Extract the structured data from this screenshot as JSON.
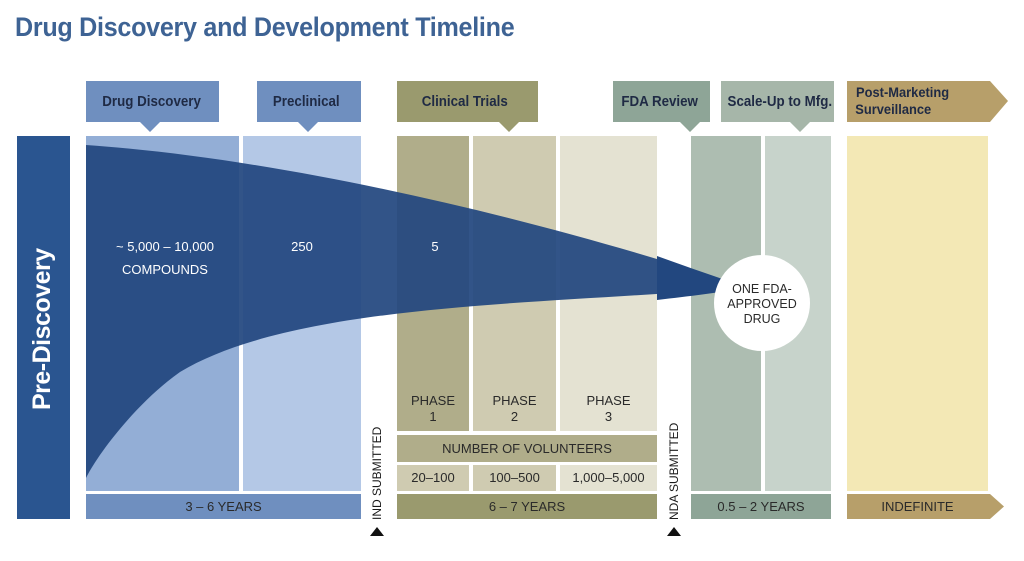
{
  "title": "Drug Discovery and Development Timeline",
  "stages": {
    "pre_discovery": "Pre-Discovery",
    "drug_discovery": "Drug Discovery",
    "preclinical": "Preclinical",
    "clinical_trials": "Clinical Trials",
    "fda_review": "FDA Review",
    "scale_up": "Scale-Up to Mfg.",
    "post_marketing_line1": "Post-Marketing",
    "post_marketing_line2": "Surveillance"
  },
  "counts": {
    "discovery_line1": "~ 5,000 – 10,000",
    "discovery_line2": "COMPOUNDS",
    "preclinical": "250",
    "clinical": "5",
    "approved_line1": "ONE FDA-",
    "approved_line2": "APPROVED",
    "approved_line3": "DRUG"
  },
  "phases": [
    {
      "word": "PHASE",
      "number": "1",
      "volunteers": "20–100"
    },
    {
      "word": "PHASE",
      "number": "2",
      "volunteers": "100–500"
    },
    {
      "word": "PHASE",
      "number": "3",
      "volunteers": "1,000–5,000"
    }
  ],
  "volunteers_label": "NUMBER OF VOLUNTEERS",
  "milestones": {
    "ind": "IND SUBMITTED",
    "nda": "NDA SUBMITTED"
  },
  "durations": {
    "discovery_preclinical": "3 – 6 YEARS",
    "clinical": "6 – 7 YEARS",
    "review_scaleup": "0.5 – 2 YEARS",
    "post_marketing": "INDEFINITE"
  },
  "colors": {
    "title": "#3e6394",
    "funnel": "#22477f",
    "pre_discovery": "#2a5590",
    "blue_header": "#6f8fbf",
    "blue_col": "#93aed6",
    "blue_col2": "#b4c8e6",
    "olive_header": "#9a9a6e",
    "olive_col1": "#b0ad8a",
    "olive_col2": "#cfcbb1",
    "olive_col3": "#e4e2d2",
    "green_header": "#8ea597",
    "green_col1": "#adbdb1",
    "green_col2": "#c7d3cb",
    "gold_header": "#b79f6a",
    "gold_col": "#f3e8b5"
  }
}
